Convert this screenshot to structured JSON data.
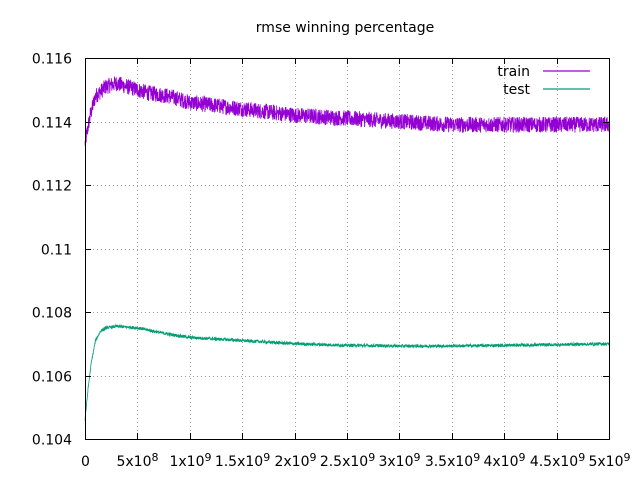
{
  "chart_data": {
    "type": "line",
    "title": "rmse winning percentage",
    "xlabel": "",
    "ylabel": "",
    "xlim": [
      0,
      5000000000
    ],
    "ylim": [
      0.104,
      0.116
    ],
    "grid": true,
    "legend_position": "top-right",
    "x_ticks": [
      {
        "value": 0,
        "label": "0"
      },
      {
        "value": 500000000,
        "label": "5x10^8"
      },
      {
        "value": 1000000000,
        "label": "1x10^9"
      },
      {
        "value": 1500000000,
        "label": "1.5x10^9"
      },
      {
        "value": 2000000000,
        "label": "2x10^9"
      },
      {
        "value": 2500000000,
        "label": "2.5x10^9"
      },
      {
        "value": 3000000000,
        "label": "3x10^9"
      },
      {
        "value": 3500000000,
        "label": "3.5x10^9"
      },
      {
        "value": 4000000000,
        "label": "4x10^9"
      },
      {
        "value": 4500000000,
        "label": "4.5x10^9"
      },
      {
        "value": 5000000000,
        "label": "5x10^9"
      }
    ],
    "y_ticks": [
      {
        "value": 0.104,
        "label": "0.104"
      },
      {
        "value": 0.106,
        "label": "0.106"
      },
      {
        "value": 0.108,
        "label": "0.108"
      },
      {
        "value": 0.11,
        "label": "0.11"
      },
      {
        "value": 0.112,
        "label": "0.112"
      },
      {
        "value": 0.114,
        "label": "0.114"
      },
      {
        "value": 0.116,
        "label": "0.116"
      }
    ],
    "series": [
      {
        "name": "train",
        "color": "#9400d3",
        "noise": 0.00025,
        "x": [
          0,
          50000000,
          100000000,
          200000000,
          300000000,
          400000000,
          600000000,
          800000000,
          1000000000,
          1500000000,
          2000000000,
          2500000000,
          3000000000,
          3500000000,
          4000000000,
          4500000000,
          5000000000
        ],
        "y": [
          0.1133,
          0.1142,
          0.1148,
          0.1151,
          0.1152,
          0.1151,
          0.1149,
          0.1148,
          0.1146,
          0.1144,
          0.1142,
          0.1141,
          0.114,
          0.1139,
          0.1139,
          0.1139,
          0.1139
        ]
      },
      {
        "name": "test",
        "color": "#009e73",
        "noise": 5e-05,
        "x": [
          0,
          30000000,
          60000000,
          100000000,
          150000000,
          200000000,
          300000000,
          500000000,
          800000000,
          1000000000,
          1500000000,
          2000000000,
          2500000000,
          3000000000,
          3500000000,
          4000000000,
          4500000000,
          5000000000
        ],
        "y": [
          0.1046,
          0.1056,
          0.1064,
          0.1071,
          0.1074,
          0.1075,
          0.10755,
          0.1075,
          0.1073,
          0.1072,
          0.1071,
          0.107,
          0.10695,
          0.10693,
          0.10693,
          0.10695,
          0.10697,
          0.107
        ]
      }
    ]
  }
}
